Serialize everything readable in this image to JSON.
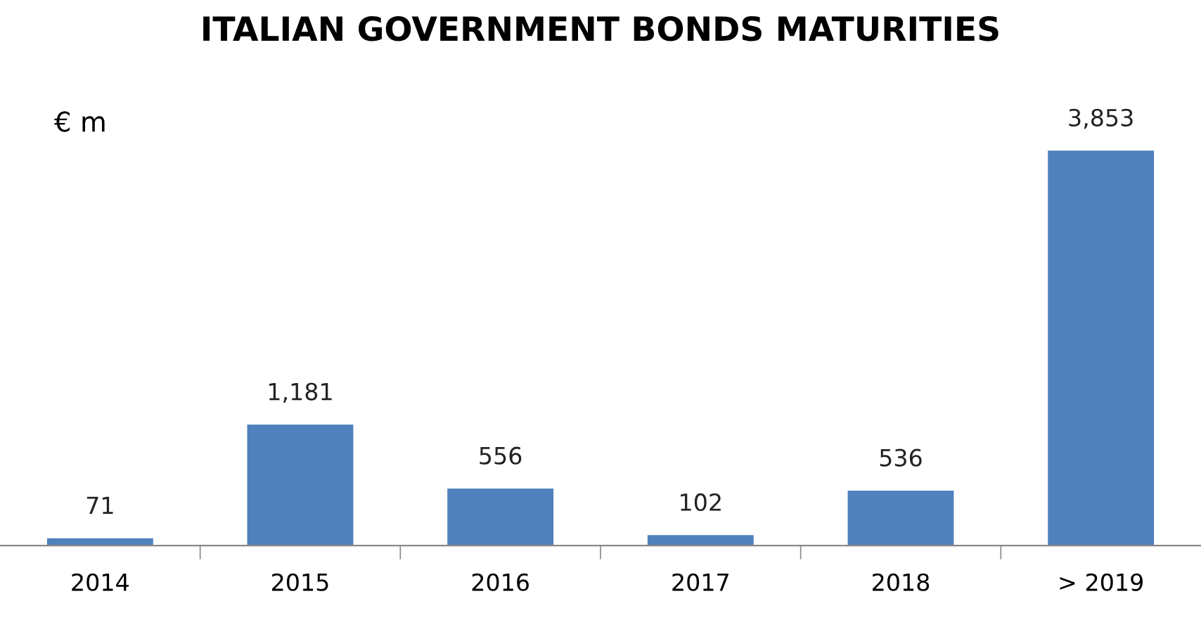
{
  "chart_data": {
    "type": "bar",
    "title": "ITALIAN GOVERNMENT BONDS MATURITIES",
    "ylabel": "€ m",
    "categories": [
      "2014",
      "2015",
      "2016",
      "2017",
      "2018",
      "> 2019"
    ],
    "values": [
      71,
      1181,
      556,
      102,
      536,
      3853
    ],
    "value_labels": [
      "71",
      "1,181",
      "556",
      "102",
      "536",
      "3,853"
    ],
    "color": "#4f81bd",
    "grid": false,
    "legend": false,
    "tick_labels": "x"
  }
}
